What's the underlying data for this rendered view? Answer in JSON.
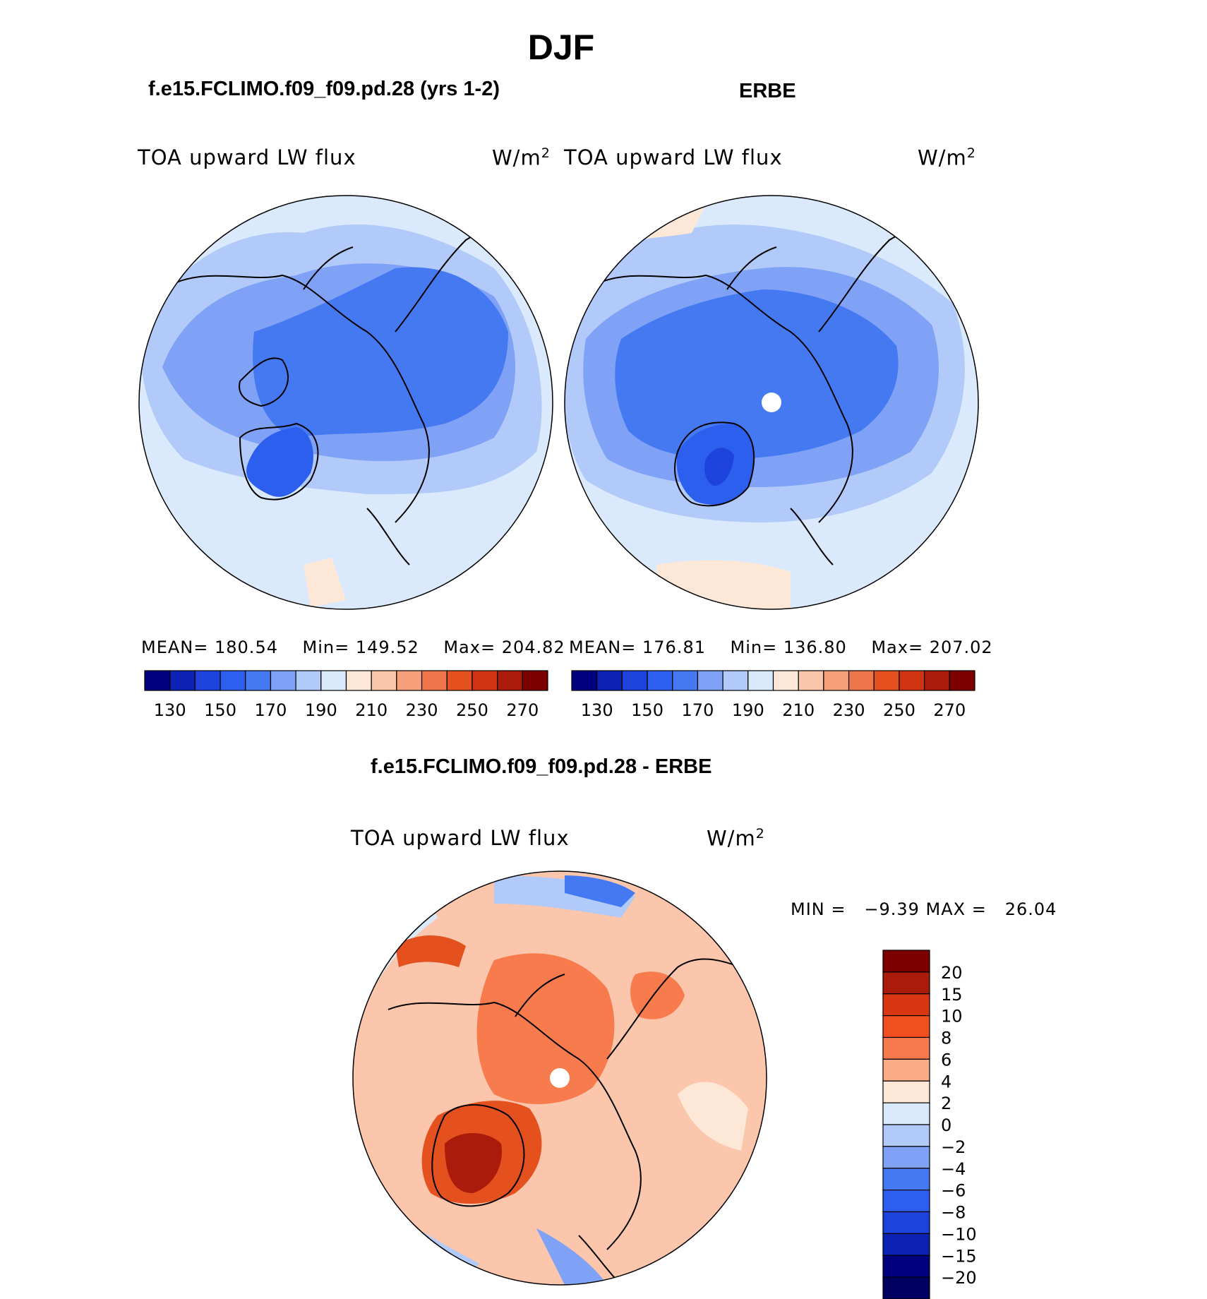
{
  "figure": {
    "main_title": "DJF",
    "diff_title": "f.e15.FCLIMO.f09_f09.pd.28 - ERBE"
  },
  "panels": {
    "model": {
      "title": "f.e15.FCLIMO.f09_f09.pd.28 (yrs 1-2)",
      "variable": "TOA upward LW flux",
      "units": "W/m",
      "units_sup": "2",
      "mean_label": "MEAN=",
      "mean_value": "180.54",
      "min_label": "Min=",
      "min_value": "149.52",
      "max_label": "Max=",
      "max_value": "204.82"
    },
    "obs": {
      "title": "ERBE",
      "variable": "TOA upward LW flux",
      "units": "W/m",
      "units_sup": "2",
      "mean_label": "MEAN=",
      "mean_value": "176.81",
      "min_label": "Min=",
      "min_value": "136.80",
      "max_label": "Max=",
      "max_value": "207.02"
    },
    "diff": {
      "variable": "TOA upward LW flux",
      "units": "W/m",
      "units_sup": "2",
      "minmax_text": "MIN =   −9.39 MAX =   26.04"
    }
  },
  "chart_data": [
    {
      "type": "heatmap",
      "name": "model",
      "title": "f.e15.FCLIMO.f09_f09.pd.28 (yrs 1-2)",
      "projection": "north polar stereographic",
      "stats": {
        "mean": 180.54,
        "min": 149.52,
        "max": 204.82
      },
      "colorbar": {
        "levels": [
          130,
          140,
          150,
          160,
          170,
          180,
          190,
          200,
          210,
          220,
          230,
          240,
          250,
          260,
          270
        ],
        "tick_labels": [
          "130",
          "150",
          "170",
          "190",
          "210",
          "230",
          "250",
          "270"
        ],
        "colors": [
          "#00007f",
          "#0b22b4",
          "#1d43dc",
          "#2c5fee",
          "#4579f2",
          "#7fa2f6",
          "#b1caf9",
          "#daeafc",
          "#fde8d8",
          "#fbc6ab",
          "#f6a07b",
          "#ef754b",
          "#e5501f",
          "#d13413",
          "#ab1b0b",
          "#7d0000"
        ]
      }
    },
    {
      "type": "heatmap",
      "name": "obs",
      "title": "ERBE",
      "projection": "north polar stereographic",
      "stats": {
        "mean": 176.81,
        "min": 136.8,
        "max": 207.02
      },
      "colorbar": {
        "levels": [
          130,
          140,
          150,
          160,
          170,
          180,
          190,
          200,
          210,
          220,
          230,
          240,
          250,
          260,
          270
        ],
        "tick_labels": [
          "130",
          "150",
          "170",
          "190",
          "210",
          "230",
          "250",
          "270"
        ],
        "colors": [
          "#00007f",
          "#0b22b4",
          "#1d43dc",
          "#2c5fee",
          "#4579f2",
          "#7fa2f6",
          "#b1caf9",
          "#daeafc",
          "#fde8d8",
          "#fbc6ab",
          "#f6a07b",
          "#ef754b",
          "#e5501f",
          "#d13413",
          "#ab1b0b",
          "#7d0000"
        ]
      }
    },
    {
      "type": "heatmap",
      "name": "difference",
      "title": "f.e15.FCLIMO.f09_f09.pd.28 - ERBE",
      "projection": "north polar stereographic",
      "stats": {
        "min": -9.39,
        "max": 26.04
      },
      "colorbar": {
        "tick_labels": [
          "20",
          "15",
          "10",
          "8",
          "6",
          "4",
          "2",
          "0",
          "−2",
          "−4",
          "−6",
          "−8",
          "−10",
          "−15",
          "−20"
        ],
        "colors_top_to_bottom": [
          "#7d0000",
          "#ab1b0b",
          "#d93614",
          "#f24f1f",
          "#f77b4d",
          "#fbab86",
          "#fde8d8",
          "#daeafc",
          "#b1caf9",
          "#7fa2f6",
          "#4579f2",
          "#2c5fee",
          "#1d43dc",
          "#0b22b4",
          "#00007f",
          "#000060"
        ]
      }
    }
  ]
}
